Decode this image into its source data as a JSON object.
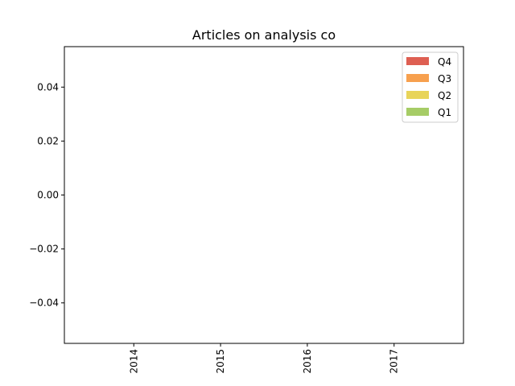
{
  "chart_data": {
    "type": "bar",
    "stacked": true,
    "title": "Articles on analysis co",
    "xlabel": "",
    "ylabel": "",
    "categories": [
      "2014",
      "2015",
      "2016",
      "2017"
    ],
    "series": [
      {
        "name": "Q1",
        "values": [
          0,
          0,
          0,
          0
        ],
        "color": "#a6cc66"
      },
      {
        "name": "Q2",
        "values": [
          0,
          0,
          0,
          0
        ],
        "color": "#e8d45a"
      },
      {
        "name": "Q3",
        "values": [
          0,
          0,
          0,
          0
        ],
        "color": "#f7a04e"
      },
      {
        "name": "Q4",
        "values": [
          0,
          0,
          0,
          0
        ],
        "color": "#de5f52"
      }
    ],
    "ylim": [
      -0.055,
      0.055
    ],
    "yticks": [
      -0.04,
      -0.02,
      0.0,
      0.02,
      0.04
    ],
    "ytick_labels": [
      "−0.04",
      "−0.02",
      "0.00",
      "0.02",
      "0.04"
    ],
    "legend_order": [
      "Q4",
      "Q3",
      "Q2",
      "Q1"
    ],
    "legend_position": "top-right",
    "grid": false
  }
}
